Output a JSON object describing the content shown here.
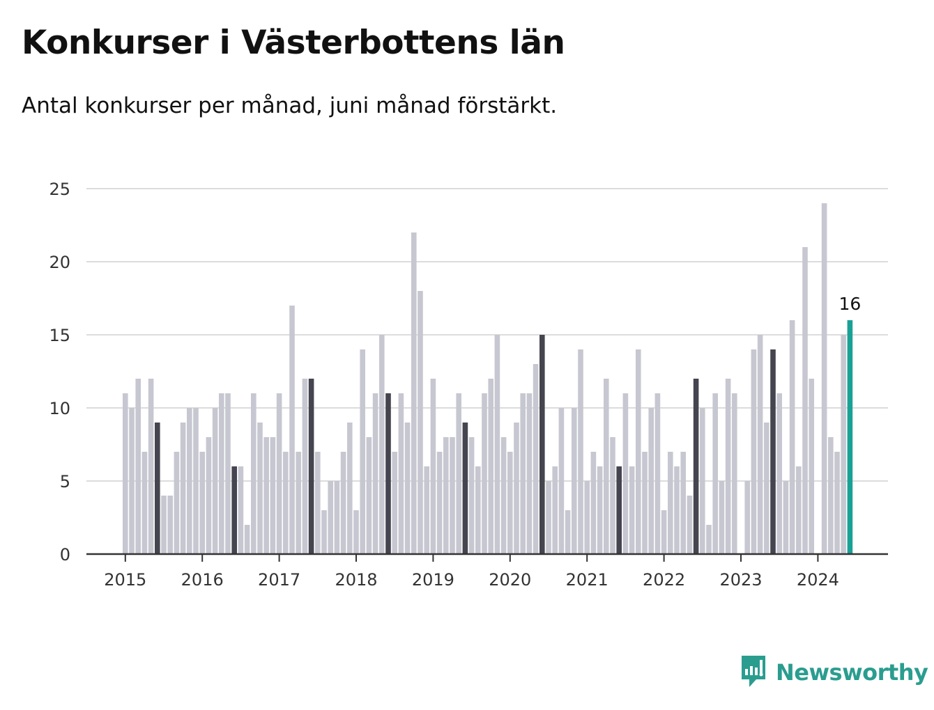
{
  "title": "Konkurser i Västerbottens län",
  "subtitle": "Antal konkurser per månad, juni månad förstärkt.",
  "brand": {
    "name": "Newsworthy",
    "icon": "newsworthy-logo-icon"
  },
  "colors": {
    "normal_bar": "#c7c7d1",
    "highlight_bar": "#454550",
    "latest_bar": "#1aa195",
    "gridline": "#dcdcdc",
    "axis": "#333333",
    "brand": "#2a9d8f"
  },
  "chart_data": {
    "type": "bar",
    "start": "2015-01",
    "end": "2024-06",
    "highlight_month": "June",
    "ylim": [
      0,
      25
    ],
    "yticks": [
      "0",
      "5",
      "10",
      "15",
      "20",
      "25"
    ],
    "xticks": [
      "2015",
      "2016",
      "2017",
      "2018",
      "2019",
      "2020",
      "2021",
      "2022",
      "2023",
      "2024"
    ],
    "grid": true,
    "values": [
      11,
      10,
      12,
      7,
      12,
      9,
      4,
      4,
      7,
      9,
      10,
      10,
      7,
      8,
      10,
      11,
      11,
      6,
      6,
      2,
      11,
      9,
      8,
      8,
      11,
      7,
      17,
      7,
      12,
      12,
      7,
      3,
      5,
      5,
      7,
      9,
      3,
      14,
      8,
      11,
      15,
      11,
      7,
      11,
      9,
      22,
      18,
      6,
      12,
      7,
      8,
      8,
      11,
      9,
      8,
      6,
      11,
      12,
      15,
      8,
      7,
      9,
      11,
      11,
      13,
      15,
      5,
      6,
      10,
      3,
      10,
      14,
      5,
      7,
      6,
      12,
      8,
      6,
      11,
      6,
      14,
      7,
      10,
      11,
      3,
      7,
      6,
      7,
      4,
      12,
      10,
      2,
      11,
      5,
      12,
      11,
      0,
      5,
      14,
      15,
      9,
      14,
      11,
      5,
      16,
      6,
      21,
      12,
      0,
      24,
      8,
      7,
      15,
      16
    ],
    "last_value_label": "16"
  }
}
